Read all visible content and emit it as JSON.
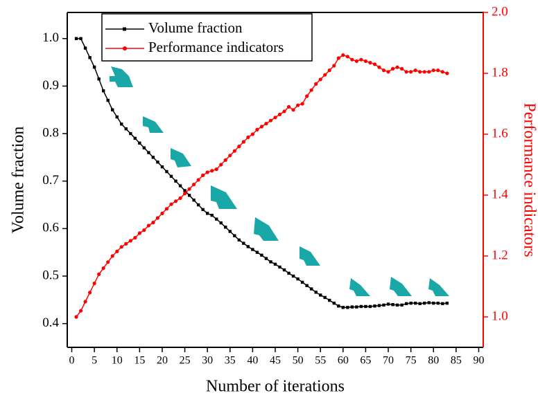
{
  "chart_data": {
    "type": "line",
    "xlabel": "Number of iterations",
    "ylabel": "Volume fraction",
    "y2label": "Performance indicators",
    "x": [
      1,
      2,
      3,
      4,
      5,
      6,
      7,
      8,
      9,
      10,
      11,
      12,
      13,
      14,
      15,
      16,
      17,
      18,
      19,
      20,
      21,
      22,
      23,
      24,
      25,
      26,
      27,
      28,
      29,
      30,
      31,
      32,
      33,
      34,
      35,
      36,
      37,
      38,
      39,
      40,
      41,
      42,
      43,
      44,
      45,
      46,
      47,
      48,
      49,
      50,
      51,
      52,
      53,
      54,
      55,
      56,
      57,
      58,
      59,
      60,
      61,
      62,
      63,
      64,
      65,
      66,
      67,
      68,
      69,
      70,
      71,
      72,
      73,
      74,
      75,
      76,
      77,
      78,
      79,
      80,
      81,
      82,
      83
    ],
    "series": [
      {
        "name": "Volume fraction",
        "color": "#000000",
        "marker": "square",
        "values": [
          1.0,
          1.0,
          0.98,
          0.96,
          0.94,
          0.915,
          0.89,
          0.87,
          0.85,
          0.835,
          0.82,
          0.81,
          0.8,
          0.79,
          0.78,
          0.77,
          0.76,
          0.75,
          0.74,
          0.73,
          0.72,
          0.71,
          0.7,
          0.69,
          0.68,
          0.67,
          0.66,
          0.65,
          0.64,
          0.632,
          0.628,
          0.62,
          0.612,
          0.603,
          0.594,
          0.585,
          0.576,
          0.569,
          0.562,
          0.556,
          0.55,
          0.544,
          0.537,
          0.53,
          0.525,
          0.519,
          0.513,
          0.506,
          0.5,
          0.494,
          0.487,
          0.48,
          0.473,
          0.466,
          0.46,
          0.455,
          0.449,
          0.443,
          0.437,
          0.434,
          0.434,
          0.435,
          0.435,
          0.436,
          0.436,
          0.436,
          0.437,
          0.438,
          0.439,
          0.441,
          0.44,
          0.439,
          0.439,
          0.442,
          0.443,
          0.443,
          0.442,
          0.443,
          0.444,
          0.443,
          0.443,
          0.442,
          0.443
        ]
      },
      {
        "name": "Performance indicators",
        "color": "#ff0000",
        "marker": "circle",
        "axis": "y2",
        "values": [
          1.0,
          1.02,
          1.05,
          1.08,
          1.11,
          1.14,
          1.16,
          1.18,
          1.2,
          1.215,
          1.23,
          1.24,
          1.25,
          1.26,
          1.275,
          1.285,
          1.3,
          1.31,
          1.325,
          1.34,
          1.355,
          1.37,
          1.38,
          1.39,
          1.405,
          1.42,
          1.435,
          1.45,
          1.465,
          1.475,
          1.48,
          1.485,
          1.5,
          1.515,
          1.53,
          1.545,
          1.56,
          1.575,
          1.59,
          1.6,
          1.615,
          1.625,
          1.635,
          1.645,
          1.655,
          1.665,
          1.675,
          1.69,
          1.68,
          1.695,
          1.7,
          1.725,
          1.745,
          1.765,
          1.78,
          1.795,
          1.81,
          1.825,
          1.85,
          1.86,
          1.855,
          1.845,
          1.84,
          1.845,
          1.84,
          1.835,
          1.83,
          1.82,
          1.81,
          1.805,
          1.815,
          1.82,
          1.815,
          1.805,
          1.805,
          1.81,
          1.805,
          1.805,
          1.805,
          1.81,
          1.81,
          1.805,
          1.8
        ]
      }
    ],
    "xlim": [
      -1,
      91
    ],
    "xticks": [
      0,
      5,
      10,
      15,
      20,
      25,
      30,
      35,
      40,
      45,
      50,
      55,
      60,
      65,
      70,
      75,
      80,
      85,
      90
    ],
    "ylim": [
      0.35,
      1.055
    ],
    "yticks": [
      0.4,
      0.5,
      0.6,
      0.7,
      0.8,
      0.9,
      {
        "value": 1,
        "label": "1.0"
      }
    ],
    "y2lim": [
      0.9,
      2.0
    ],
    "y2ticks": [
      {
        "value": 1,
        "label": "1.0"
      },
      1.2,
      1.4,
      1.6,
      1.8,
      {
        "value": 2,
        "label": "2.0"
      }
    ],
    "y2color": "#ff0000",
    "legend": "upper left"
  }
}
